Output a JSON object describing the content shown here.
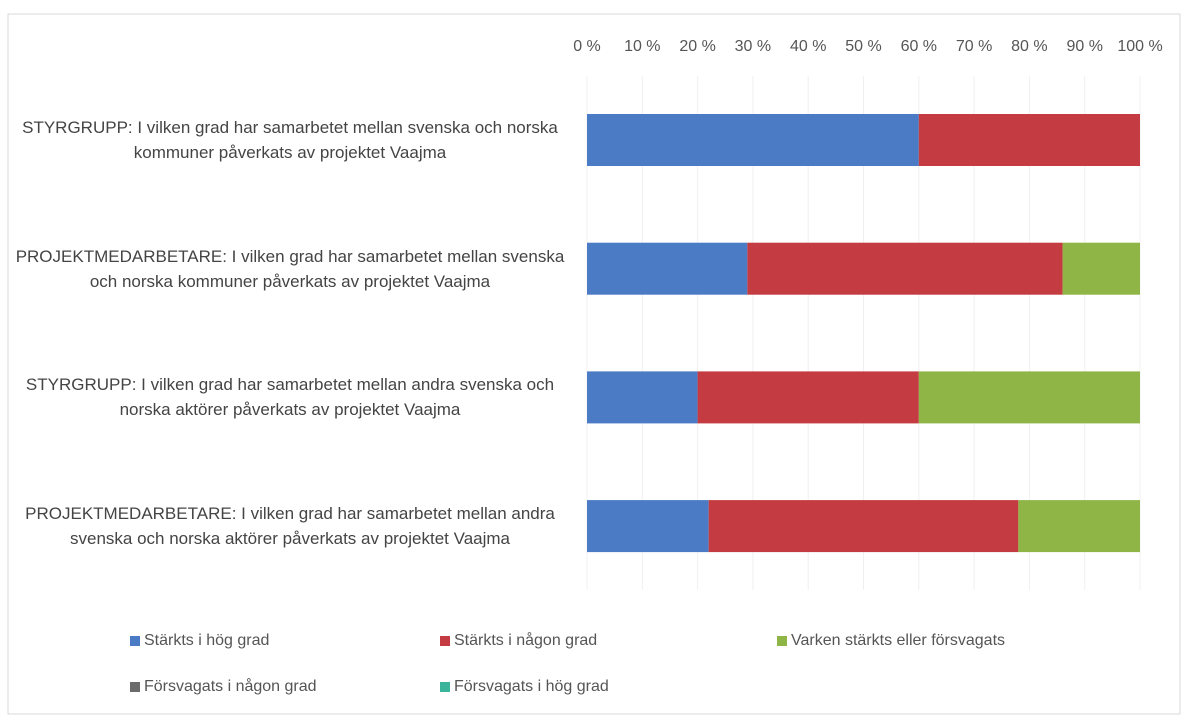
{
  "chart_data": {
    "type": "stacked_barh",
    "categories": [
      "STYRGRUPP: I vilken grad har samarbetet mellan svenska och norska kommuner påverkats av projektet Vaajma",
      "PROJEKTMEDARBETARE: I vilken grad har samarbetet mellan svenska och norska kommuner påverkats av projektet Vaajma",
      "STYRGRUPP: I vilken grad har samarbetet mellan andra svenska och norska aktörer påverkats av projektet Vaajma",
      "PROJEKTMEDARBETARE: I vilken grad har samarbetet mellan andra svenska och norska aktörer påverkats av projektet Vaajma"
    ],
    "series": [
      {
        "name": "Stärkts i hög grad",
        "color": "#4a7bc4",
        "values": [
          60,
          29,
          20,
          22
        ]
      },
      {
        "name": "Stärkts i någon grad",
        "color": "#c43c42",
        "values": [
          40,
          57,
          40,
          56
        ]
      },
      {
        "name": "Varken stärkts eller försvagats",
        "color": "#8fb546",
        "values": [
          0,
          14,
          40,
          22
        ]
      },
      {
        "name": "Försvagats i någon grad",
        "color": "#6b6b6b",
        "values": [
          0,
          0,
          0,
          0
        ]
      },
      {
        "name": "Försvagats i hög grad",
        "color": "#3bb49c",
        "values": [
          0,
          0,
          0,
          0
        ]
      }
    ],
    "xlim": [
      0,
      100
    ],
    "xticks": [
      {
        "value": 0,
        "label": "0 %"
      },
      {
        "value": 10,
        "label": "10 %"
      },
      {
        "value": 20,
        "label": "20 %"
      },
      {
        "value": 30,
        "label": "30 %"
      },
      {
        "value": 40,
        "label": "40 %"
      },
      {
        "value": 50,
        "label": "50 %"
      },
      {
        "value": 60,
        "label": "60 %"
      },
      {
        "value": 70,
        "label": "70 %"
      },
      {
        "value": 80,
        "label": "80 %"
      },
      {
        "value": 90,
        "label": "90 %"
      },
      {
        "value": 100,
        "label": "100 %"
      }
    ],
    "grid": true
  }
}
